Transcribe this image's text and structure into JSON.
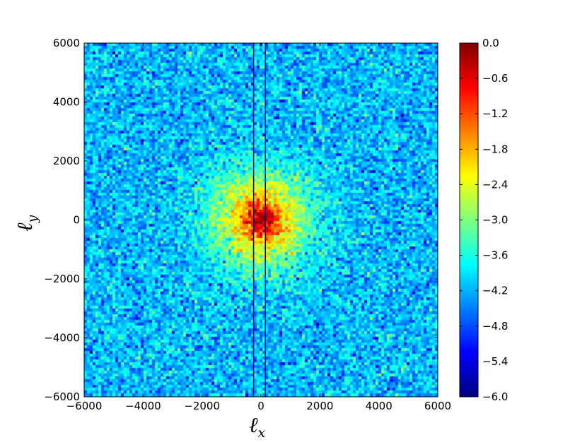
{
  "chart_data": {
    "type": "heatmap",
    "title": "",
    "xlabel": "ℓ",
    "xlabel_sub": "x",
    "ylabel": "ℓ",
    "ylabel_sub": "y",
    "xlim": [
      -6000,
      6000
    ],
    "ylim": [
      -6000,
      6000
    ],
    "xticks": [
      -6000,
      -4000,
      -2000,
      0,
      2000,
      4000,
      6000
    ],
    "xtick_labels": [
      "−6000",
      "−4000",
      "−2000",
      "0",
      "2000",
      "4000",
      "6000"
    ],
    "yticks": [
      -6000,
      -4000,
      -2000,
      0,
      2000,
      4000,
      6000
    ],
    "ytick_labels": [
      "−6000",
      "−4000",
      "−2000",
      "0",
      "2000",
      "4000",
      "6000"
    ],
    "vertical_lines_x": [
      -250,
      150
    ],
    "vertical_line_color": "#000080",
    "colormap": "jet",
    "color_range": [
      -6.0,
      0.0
    ],
    "colorbar_ticks": [
      0.0,
      -0.6,
      -1.2,
      -1.8,
      -2.4,
      -3.0,
      -3.6,
      -4.2,
      -4.8,
      -5.4,
      -6.0
    ],
    "colorbar_labels": [
      "0.0",
      "−0.6",
      "−1.2",
      "−1.8",
      "−2.4",
      "−3.0",
      "−3.6",
      "−4.2",
      "−4.8",
      "−5.4",
      "−6.0"
    ],
    "field_description": {
      "peak_value": -0.2,
      "background_value": -4.0,
      "center": [
        0,
        0
      ]
    }
  }
}
